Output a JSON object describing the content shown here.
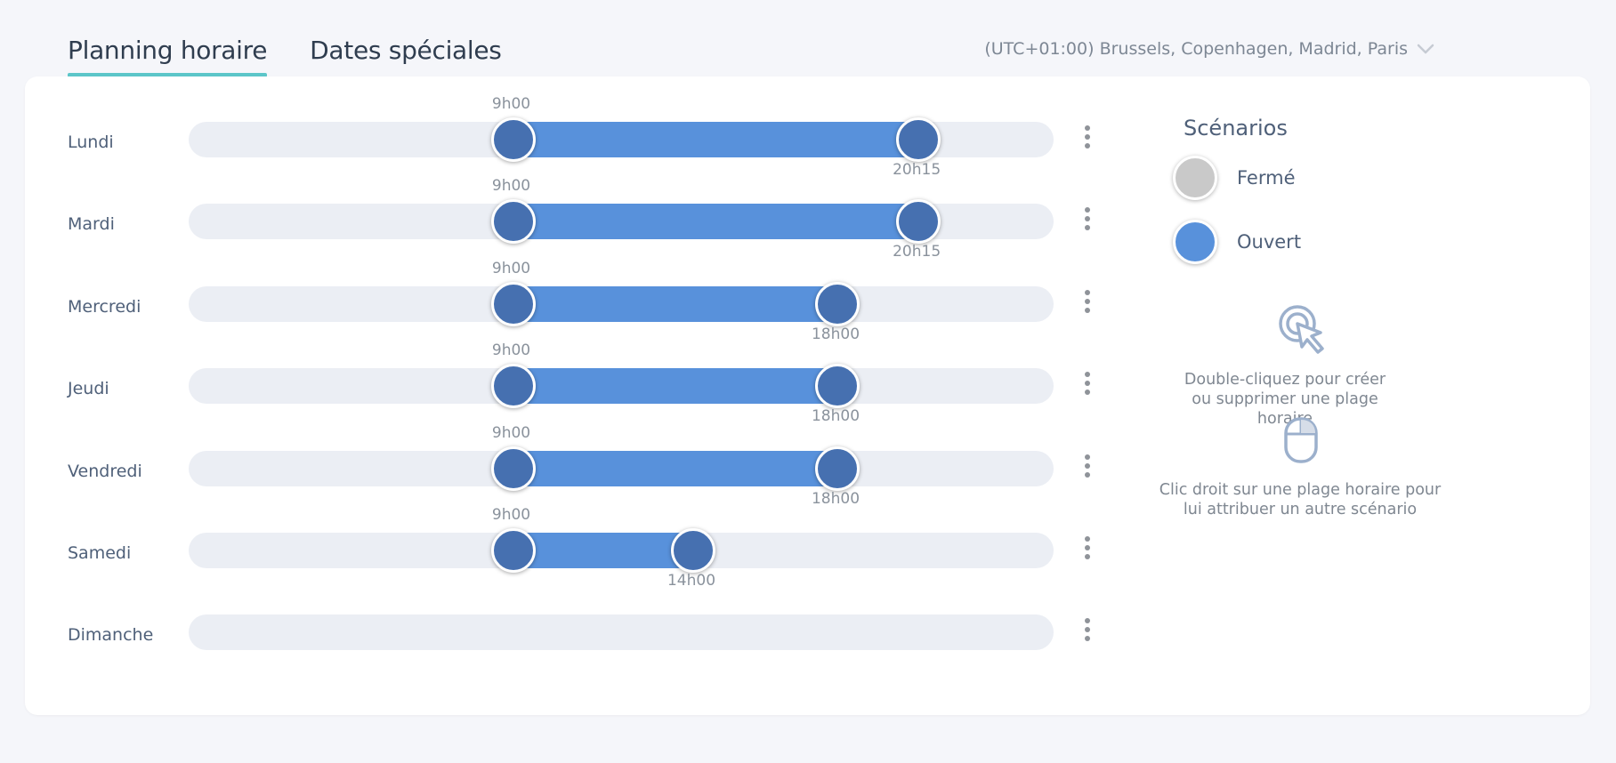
{
  "tabs": [
    {
      "label": "Planning horaire",
      "active": true
    },
    {
      "label": "Dates spéciales",
      "active": false
    }
  ],
  "timezone": {
    "label": "(UTC+01:00) Brussels, Copenhagen, Madrid, Paris",
    "icon": "chevron-down-icon"
  },
  "schedule": {
    "day_start_hour": 0,
    "day_end_hour": 24,
    "days": [
      {
        "label": "Lundi",
        "start": "9h00",
        "end": "20h15",
        "start_hour": 9,
        "end_hour": 20.25
      },
      {
        "label": "Mardi",
        "start": "9h00",
        "end": "20h15",
        "start_hour": 9,
        "end_hour": 20.25
      },
      {
        "label": "Mercredi",
        "start": "9h00",
        "end": "18h00",
        "start_hour": 9,
        "end_hour": 18
      },
      {
        "label": "Jeudi",
        "start": "9h00",
        "end": "18h00",
        "start_hour": 9,
        "end_hour": 18
      },
      {
        "label": "Vendredi",
        "start": "9h00",
        "end": "18h00",
        "start_hour": 9,
        "end_hour": 18
      },
      {
        "label": "Samedi",
        "start": "9h00",
        "end": "14h00",
        "start_hour": 9,
        "end_hour": 14
      },
      {
        "label": "Dimanche",
        "start": null,
        "end": null,
        "start_hour": null,
        "end_hour": null
      }
    ]
  },
  "scenarios": {
    "title": "Scénarios",
    "items": [
      {
        "label": "Fermé",
        "color": "#c9c9c9"
      },
      {
        "label": "Ouvert",
        "color": "#5891db"
      }
    ]
  },
  "hints": {
    "double_click": "Double-cliquez pour créer ou supprimer une plage horaire",
    "right_click": "Clic droit sur une plage horaire pour lui attribuer un autre scénario"
  },
  "colors": {
    "accent": "#5cc6c9",
    "range": "#5891db",
    "handle": "#4670b0",
    "track": "#ebeef4"
  }
}
